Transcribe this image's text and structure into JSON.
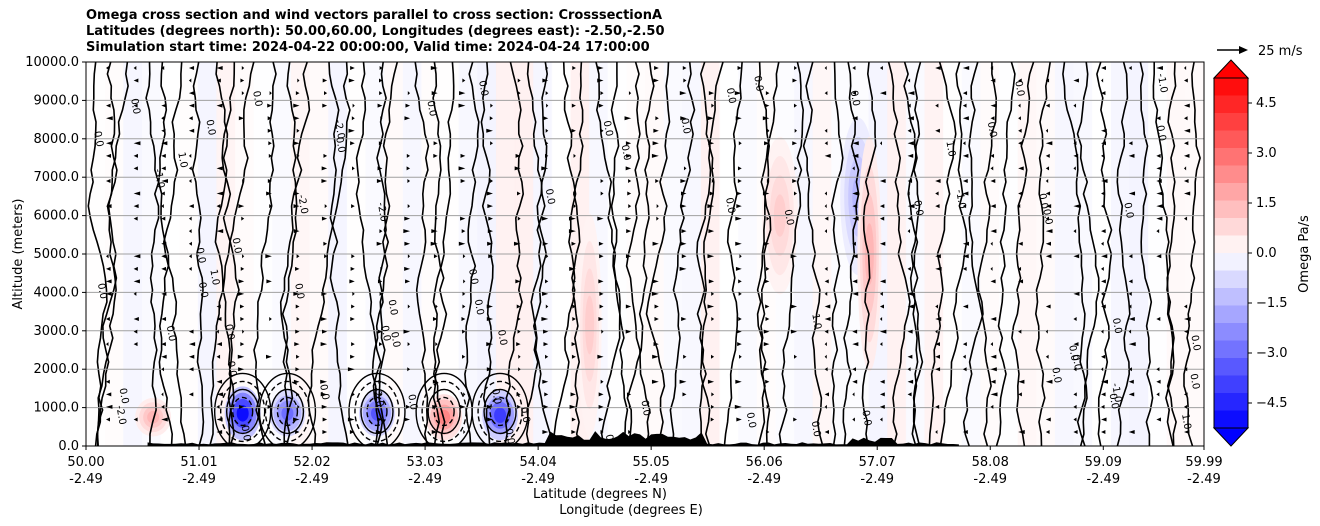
{
  "chart_data": {
    "type": "heatmap",
    "title_lines": [
      "Omega cross section and wind vectors parallel to cross section: CrosssectionA",
      "Latitudes (degrees north): 50.00,60.00, Longitudes (degrees east): -2.50,-2.50",
      "Simulation start time: 2024-04-22 00:00:00, Valid time: 2024-04-24 17:00:00"
    ],
    "ylabel": "Altitude (meters)",
    "xlabel_lines": [
      "Latitude (degrees N)",
      "Longitude (degrees E)"
    ],
    "ylim": [
      0,
      10000
    ],
    "y_ticks": [
      "0.0",
      "1000.0",
      "2000.0",
      "3000.0",
      "4000.0",
      "5000.0",
      "6000.0",
      "7000.0",
      "8000.0",
      "9000.0",
      "10000.0"
    ],
    "x_ticks": [
      {
        "lat": "50.00",
        "lon": "-2.49"
      },
      {
        "lat": "51.01",
        "lon": "-2.49"
      },
      {
        "lat": "52.02",
        "lon": "-2.49"
      },
      {
        "lat": "53.03",
        "lon": "-2.49"
      },
      {
        "lat": "54.04",
        "lon": "-2.49"
      },
      {
        "lat": "55.05",
        "lon": "-2.49"
      },
      {
        "lat": "56.06",
        "lon": "-2.49"
      },
      {
        "lat": "57.07",
        "lon": "-2.49"
      },
      {
        "lat": "58.08",
        "lon": "-2.49"
      },
      {
        "lat": "59.09",
        "lon": "-2.49"
      },
      {
        "lat": "59.99",
        "lon": "-2.49"
      }
    ],
    "colorbar": {
      "label": "Omega Pa/s",
      "range": [
        -5.25,
        5.25
      ],
      "ticks": [
        "4.5",
        "3.0",
        "1.5",
        "0.0",
        "−1.5",
        "−3.0",
        "−4.5"
      ],
      "negative_color": "#0000ff",
      "positive_color": "#ff0000",
      "neutral_color": "#ffffff"
    },
    "quiver_key": "25 m/s",
    "contour_level_label": "0.0",
    "features": [
      {
        "lat": 50.6,
        "alt_range": [
          300,
          1200
        ],
        "omega": 1.5
      },
      {
        "lat": 51.4,
        "alt_range": [
          200,
          1500
        ],
        "omega": -5.0
      },
      {
        "lat": 51.8,
        "alt_range": [
          300,
          1400
        ],
        "omega": -3.0
      },
      {
        "lat": 52.6,
        "alt_range": [
          300,
          1400
        ],
        "omega": -3.5
      },
      {
        "lat": 53.2,
        "alt_range": [
          200,
          1300
        ],
        "omega": 2.5
      },
      {
        "lat": 53.7,
        "alt_range": [
          200,
          1400
        ],
        "omega": -4.0
      },
      {
        "lat": 54.5,
        "alt_range": [
          300,
          6000
        ],
        "omega": 1.0
      },
      {
        "lat": 56.2,
        "alt_range": [
          4000,
          8000
        ],
        "omega": 1.0
      },
      {
        "lat": 56.9,
        "alt_range": [
          4500,
          8500
        ],
        "omega": -1.5
      },
      {
        "lat": 57.0,
        "alt_range": [
          2000,
          8000
        ],
        "omega": 1.5
      }
    ],
    "contour_labels": [
      "1.0",
      "-1.0",
      "-2.0",
      "0.0"
    ]
  }
}
